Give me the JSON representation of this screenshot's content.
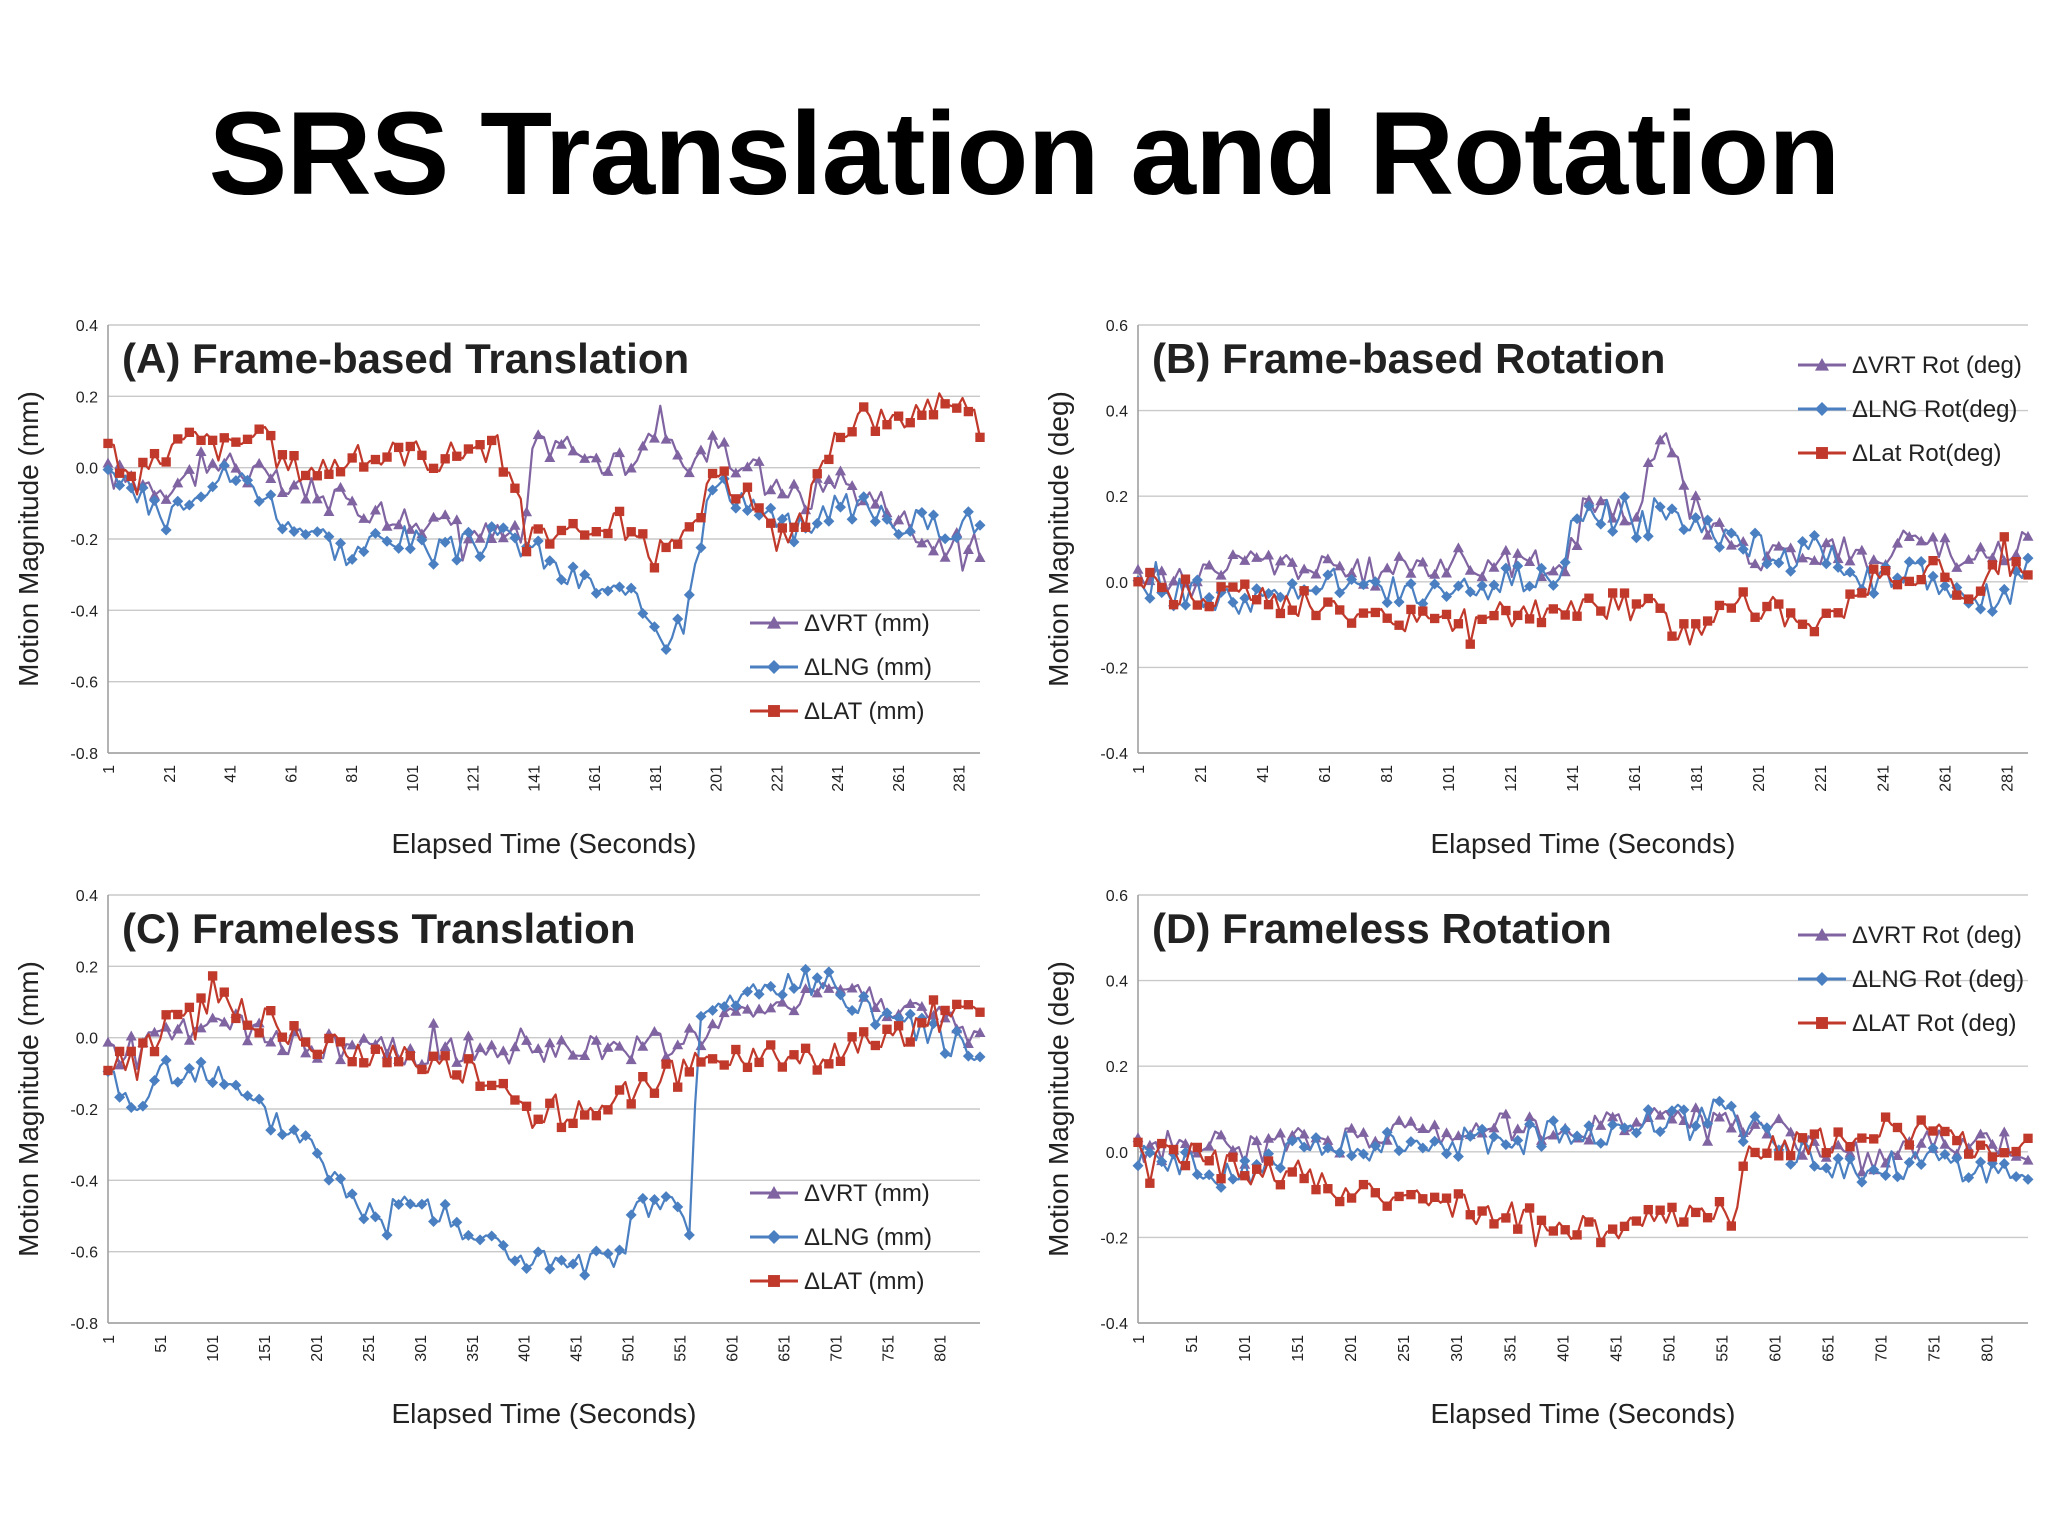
{
  "slide": {
    "title": "SRS Translation and Rotation"
  },
  "colors": {
    "vrt": "#8064a2",
    "lng": "#4a7fc1",
    "lat": "#c0392b",
    "grid": "#c9c9c9",
    "text": "#222222"
  },
  "chart_data": [
    {
      "id": "A",
      "type": "line",
      "title": "(A) Frame-based Translation",
      "xlabel": "Elapsed Time (Seconds)",
      "ylabel": "Motion Magnitude (mm)",
      "ylim": [
        -0.8,
        0.4
      ],
      "yticks": [
        "0.4",
        "0.2",
        "0.0",
        "-0.2",
        "-0.4",
        "-0.6",
        "-0.8"
      ],
      "xlim": [
        1,
        288
      ],
      "xticks": [
        "1",
        "21",
        "41",
        "61",
        "81",
        "101",
        "121",
        "141",
        "161",
        "181",
        "201",
        "221",
        "241",
        "261",
        "281"
      ],
      "grid": true,
      "legend_position": "bottom-right",
      "series": [
        {
          "name": "ΔVRT (mm)",
          "key": "vrt",
          "marker": "triangle",
          "x": [
            1,
            20,
            40,
            60,
            80,
            100,
            120,
            138,
            141,
            150,
            160,
            170,
            180,
            183,
            190,
            200,
            210,
            220,
            230,
            240,
            250,
            260,
            270,
            280,
            288
          ],
          "y": [
            -0.02,
            -0.05,
            0.02,
            -0.06,
            -0.1,
            -0.14,
            -0.18,
            -0.2,
            0.05,
            0.08,
            0.02,
            0.0,
            0.08,
            0.15,
            0.02,
            0.05,
            0.0,
            -0.03,
            -0.1,
            -0.02,
            -0.08,
            -0.12,
            -0.2,
            -0.22,
            -0.22
          ]
        },
        {
          "name": "ΔLNG (mm)",
          "key": "lng",
          "marker": "diamond",
          "x": [
            1,
            10,
            20,
            30,
            40,
            50,
            60,
            70,
            80,
            90,
            100,
            110,
            120,
            130,
            140,
            150,
            160,
            170,
            180,
            185,
            190,
            200,
            210,
            220,
            230,
            240,
            250,
            260,
            270,
            280,
            288
          ],
          "y": [
            -0.03,
            -0.08,
            -0.12,
            -0.05,
            -0.02,
            -0.05,
            -0.15,
            -0.18,
            -0.25,
            -0.2,
            -0.2,
            -0.24,
            -0.22,
            -0.2,
            -0.22,
            -0.3,
            -0.33,
            -0.36,
            -0.42,
            -0.48,
            -0.4,
            -0.05,
            -0.08,
            -0.15,
            -0.18,
            -0.1,
            -0.12,
            -0.15,
            -0.16,
            -0.16,
            -0.15
          ]
        },
        {
          "name": "ΔLAT (mm)",
          "key": "lat",
          "marker": "square",
          "x": [
            1,
            10,
            20,
            30,
            40,
            50,
            60,
            70,
            80,
            90,
            100,
            110,
            120,
            130,
            140,
            150,
            160,
            170,
            180,
            190,
            200,
            210,
            220,
            230,
            240,
            250,
            260,
            270,
            280,
            288
          ],
          "y": [
            0.05,
            -0.05,
            0.05,
            0.08,
            0.05,
            0.1,
            0.0,
            0.0,
            0.02,
            0.03,
            0.05,
            0.02,
            0.06,
            0.05,
            -0.2,
            -0.18,
            -0.22,
            -0.15,
            -0.25,
            -0.22,
            -0.05,
            -0.05,
            -0.2,
            -0.15,
            0.1,
            0.15,
            0.12,
            0.18,
            0.2,
            0.12
          ]
        }
      ]
    },
    {
      "id": "B",
      "type": "line",
      "title": "(B) Frame-based Rotation",
      "xlabel": "Elapsed Time (Seconds)",
      "ylabel": "Motion Magnitude (deg)",
      "ylim": [
        -0.4,
        0.6
      ],
      "yticks": [
        "0.6",
        "0.4",
        "0.2",
        "0.0",
        "-0.2",
        "-0.4"
      ],
      "xlim": [
        1,
        288
      ],
      "xticks": [
        "1",
        "21",
        "41",
        "61",
        "81",
        "101",
        "121",
        "141",
        "161",
        "181",
        "201",
        "221",
        "241",
        "261",
        "281"
      ],
      "grid": true,
      "legend_position": "top-right",
      "series": [
        {
          "name": "ΔVRT Rot (deg)",
          "key": "vrt",
          "marker": "triangle",
          "x": [
            1,
            20,
            40,
            60,
            80,
            100,
            120,
            140,
            145,
            160,
            172,
            180,
            190,
            200,
            210,
            220,
            230,
            240,
            250,
            260,
            270,
            280,
            288
          ],
          "y": [
            0.0,
            0.02,
            0.05,
            0.03,
            0.02,
            0.05,
            0.04,
            0.05,
            0.18,
            0.15,
            0.38,
            0.15,
            0.1,
            0.05,
            0.08,
            0.05,
            0.08,
            0.05,
            0.1,
            0.08,
            0.05,
            0.08,
            0.1
          ]
        },
        {
          "name": "ΔLNG Rot(deg)",
          "key": "lng",
          "marker": "diamond",
          "x": [
            1,
            20,
            40,
            60,
            80,
            100,
            120,
            138,
            141,
            150,
            160,
            170,
            180,
            190,
            200,
            210,
            220,
            230,
            240,
            250,
            260,
            270,
            280,
            288
          ],
          "y": [
            0.0,
            -0.03,
            -0.05,
            0.0,
            -0.02,
            -0.03,
            0.0,
            0.02,
            0.18,
            0.15,
            0.12,
            0.15,
            0.12,
            0.1,
            0.08,
            0.05,
            0.08,
            0.03,
            0.0,
            0.02,
            0.0,
            -0.03,
            -0.05,
            0.05
          ]
        },
        {
          "name": "ΔLat Rot(deg)",
          "key": "lat",
          "marker": "square",
          "x": [
            1,
            20,
            40,
            60,
            80,
            100,
            120,
            140,
            160,
            170,
            180,
            190,
            200,
            210,
            220,
            230,
            240,
            250,
            260,
            270,
            280,
            288
          ],
          "y": [
            0.0,
            -0.05,
            -0.03,
            -0.06,
            -0.08,
            -0.1,
            -0.08,
            -0.06,
            -0.05,
            -0.08,
            -0.12,
            -0.05,
            -0.05,
            -0.08,
            -0.1,
            -0.05,
            0.02,
            0.0,
            0.02,
            -0.03,
            0.05,
            0.03
          ]
        }
      ]
    },
    {
      "id": "C",
      "type": "line",
      "title": "(C) Frameless Translation",
      "xlabel": "Elapsed Time (Seconds)",
      "ylabel": "Motion Magnitude (mm)",
      "ylim": [
        -0.8,
        0.4
      ],
      "yticks": [
        "0.4",
        "0.2",
        "0.0",
        "-0.2",
        "-0.4",
        "-0.6",
        "-0.8"
      ],
      "xlim": [
        1,
        840
      ],
      "xticks": [
        "1",
        "51",
        "101",
        "151",
        "201",
        "251",
        "301",
        "351",
        "401",
        "451",
        "501",
        "551",
        "601",
        "651",
        "701",
        "751",
        "801"
      ],
      "grid": true,
      "legend_position": "bottom-right",
      "series": [
        {
          "name": "ΔVRT (mm)",
          "key": "vrt",
          "marker": "triangle",
          "x": [
            1,
            50,
            100,
            150,
            200,
            250,
            300,
            350,
            400,
            450,
            500,
            550,
            600,
            650,
            700,
            750,
            800,
            840
          ],
          "y": [
            -0.05,
            0.0,
            0.05,
            0.0,
            -0.02,
            -0.03,
            -0.05,
            -0.03,
            -0.05,
            -0.03,
            -0.03,
            -0.02,
            0.05,
            0.1,
            0.15,
            0.1,
            0.05,
            0.0
          ]
        },
        {
          "name": "ΔLNG (mm)",
          "key": "lng",
          "marker": "diamond",
          "x": [
            1,
            30,
            60,
            100,
            150,
            200,
            230,
            260,
            300,
            350,
            400,
            450,
            500,
            505,
            550,
            560,
            570,
            600,
            650,
            700,
            750,
            800,
            840
          ],
          "y": [
            -0.1,
            -0.2,
            -0.08,
            -0.1,
            -0.22,
            -0.3,
            -0.45,
            -0.5,
            -0.45,
            -0.55,
            -0.62,
            -0.65,
            -0.62,
            -0.5,
            -0.45,
            -0.6,
            0.05,
            0.1,
            0.15,
            0.15,
            0.05,
            0.0,
            -0.05
          ]
        },
        {
          "name": "ΔLAT (mm)",
          "key": "lat",
          "marker": "square",
          "x": [
            1,
            30,
            60,
            100,
            150,
            200,
            250,
            300,
            350,
            400,
            450,
            500,
            550,
            600,
            650,
            700,
            750,
            800,
            840
          ],
          "y": [
            -0.05,
            -0.05,
            0.05,
            0.1,
            0.05,
            -0.02,
            -0.05,
            -0.05,
            -0.1,
            -0.2,
            -0.22,
            -0.15,
            -0.1,
            -0.05,
            -0.05,
            -0.05,
            0.0,
            0.05,
            0.1
          ]
        }
      ]
    },
    {
      "id": "D",
      "type": "line",
      "title": "(D) Frameless Rotation",
      "xlabel": "Elapsed Time (Seconds)",
      "ylabel": "Motion Magnitude (deg)",
      "ylim": [
        -0.4,
        0.6
      ],
      "yticks": [
        "0.6",
        "0.4",
        "0.2",
        "0.0",
        "-0.2",
        "-0.4"
      ],
      "xlim": [
        1,
        840
      ],
      "xticks": [
        "1",
        "51",
        "101",
        "151",
        "201",
        "251",
        "301",
        "351",
        "401",
        "451",
        "501",
        "551",
        "601",
        "651",
        "701",
        "751",
        "801"
      ],
      "grid": true,
      "legend_position": "top-right",
      "series": [
        {
          "name": "ΔVRT Rot (deg)",
          "key": "vrt",
          "marker": "triangle",
          "x": [
            1,
            50,
            100,
            150,
            200,
            250,
            300,
            350,
            400,
            450,
            500,
            550,
            600,
            650,
            700,
            750,
            800,
            840
          ],
          "y": [
            0.0,
            0.03,
            0.0,
            0.02,
            0.03,
            0.05,
            0.05,
            0.06,
            0.05,
            0.06,
            0.08,
            0.1,
            0.05,
            0.0,
            -0.02,
            0.02,
            0.03,
            0.0
          ]
        },
        {
          "name": "ΔLNG Rot (deg)",
          "key": "lng",
          "marker": "diamond",
          "x": [
            1,
            50,
            100,
            150,
            200,
            250,
            300,
            350,
            400,
            450,
            500,
            550,
            570,
            600,
            650,
            700,
            750,
            800,
            840
          ],
          "y": [
            -0.02,
            -0.03,
            -0.05,
            0.0,
            0.0,
            0.02,
            0.03,
            0.02,
            0.05,
            0.05,
            0.08,
            0.1,
            0.05,
            0.02,
            -0.03,
            -0.05,
            -0.02,
            -0.05,
            -0.05
          ]
        },
        {
          "name": "ΔLAT Rot (deg)",
          "key": "lat",
          "marker": "square",
          "x": [
            1,
            50,
            100,
            150,
            200,
            250,
            300,
            350,
            400,
            450,
            500,
            550,
            565,
            570,
            600,
            650,
            700,
            750,
            800,
            840
          ],
          "y": [
            0.0,
            0.0,
            -0.05,
            -0.05,
            -0.1,
            -0.12,
            -0.12,
            -0.15,
            -0.18,
            -0.18,
            -0.15,
            -0.12,
            -0.18,
            0.0,
            0.02,
            0.03,
            0.05,
            0.05,
            0.0,
            0.0
          ]
        }
      ]
    }
  ]
}
